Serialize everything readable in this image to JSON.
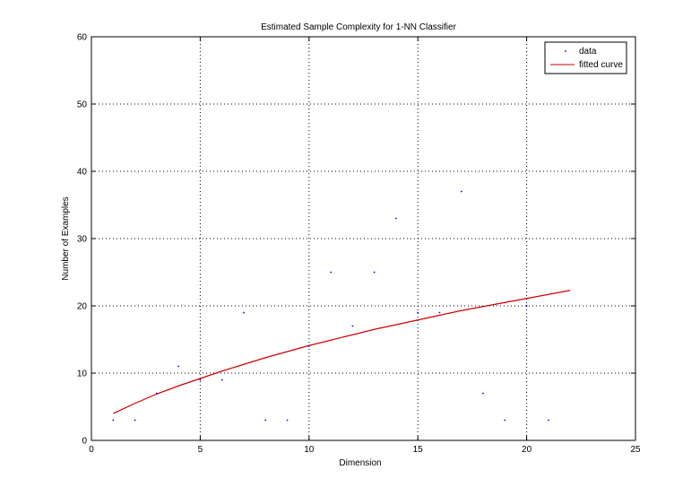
{
  "chart_data": {
    "type": "line",
    "title": "Estimated Sample Complexity for 1-NN Classifier",
    "xlabel": "Dimension",
    "ylabel": "Number of Examples",
    "xlim": [
      0,
      25
    ],
    "ylim": [
      0,
      60
    ],
    "xticks": [
      0,
      5,
      10,
      15,
      20,
      25
    ],
    "yticks": [
      0,
      10,
      20,
      30,
      40,
      50,
      60
    ],
    "grid": true,
    "legend_position": "top-right",
    "colors": {
      "data": "#0000ff",
      "fitted": "#cc0000"
    },
    "series": [
      {
        "name": "data",
        "style": "points",
        "x": [
          1,
          2,
          3,
          4,
          5,
          6,
          7,
          8,
          9,
          10,
          11,
          12,
          13,
          14,
          15,
          16,
          17,
          18,
          19,
          20,
          21
        ],
        "y": [
          3,
          3,
          7,
          11,
          9,
          9,
          19,
          3,
          3,
          14,
          25,
          17,
          25,
          33,
          19,
          19,
          37,
          7,
          3,
          20,
          3
        ]
      },
      {
        "name": "fitted curve",
        "style": "line",
        "x": [
          1,
          2,
          3,
          4,
          5,
          6,
          7,
          8,
          9,
          10,
          11,
          12,
          13,
          14,
          15,
          16,
          17,
          18,
          19,
          20,
          21,
          22
        ],
        "y": [
          4.0,
          5.5,
          6.9,
          8.1,
          9.2,
          10.3,
          11.3,
          12.3,
          13.2,
          14.1,
          14.9,
          15.7,
          16.5,
          17.2,
          17.9,
          18.6,
          19.3,
          19.9,
          20.5,
          21.1,
          21.7,
          22.3
        ]
      }
    ]
  }
}
